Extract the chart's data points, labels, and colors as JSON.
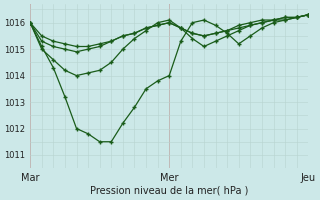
{
  "bg_color": "#cce8e8",
  "line_color": "#1a5c1a",
  "ylabel_ticks": [
    1011,
    1012,
    1013,
    1014,
    1015,
    1016
  ],
  "xlim": [
    0,
    48
  ],
  "ylim": [
    1010.6,
    1016.7
  ],
  "xlabel": "Pression niveau de la mer( hPa )",
  "xtick_positions": [
    0,
    24,
    48
  ],
  "xtick_labels": [
    "Mar",
    "Mer",
    "Jeu"
  ],
  "series": [
    {
      "x": [
        0,
        2,
        4,
        6,
        8,
        10,
        12,
        14,
        16,
        18,
        20,
        22,
        24,
        26,
        28,
        30,
        32,
        34,
        36,
        38,
        40,
        42,
        44,
        46,
        48
      ],
      "y": [
        1016.0,
        1015.1,
        1014.3,
        1013.2,
        1012.0,
        1011.8,
        1011.5,
        1011.5,
        1012.2,
        1012.8,
        1013.5,
        1013.8,
        1014.0,
        1015.3,
        1016.0,
        1016.1,
        1015.9,
        1015.6,
        1015.2,
        1015.5,
        1015.8,
        1016.0,
        1016.1,
        1016.2,
        1016.3
      ]
    },
    {
      "x": [
        0,
        2,
        4,
        6,
        8,
        10,
        12,
        14,
        16,
        18,
        20,
        22,
        24,
        26,
        28,
        30,
        32,
        34,
        36,
        38,
        40,
        42,
        44,
        46,
        48
      ],
      "y": [
        1016.0,
        1015.0,
        1014.6,
        1014.2,
        1014.0,
        1014.1,
        1014.2,
        1014.5,
        1015.0,
        1015.4,
        1015.7,
        1016.0,
        1016.1,
        1015.8,
        1015.4,
        1015.1,
        1015.3,
        1015.5,
        1015.7,
        1015.9,
        1016.0,
        1016.1,
        1016.2,
        1016.2,
        1016.3
      ]
    },
    {
      "x": [
        0,
        2,
        4,
        6,
        8,
        10,
        12,
        14,
        16,
        18,
        20,
        22,
        24,
        26,
        28,
        30,
        32,
        34,
        36,
        38,
        40,
        42,
        44,
        46,
        48
      ],
      "y": [
        1016.0,
        1015.3,
        1015.1,
        1015.0,
        1014.9,
        1015.0,
        1015.1,
        1015.3,
        1015.5,
        1015.6,
        1015.8,
        1015.9,
        1016.0,
        1015.8,
        1015.6,
        1015.5,
        1015.6,
        1015.7,
        1015.8,
        1015.9,
        1016.0,
        1016.1,
        1016.1,
        1016.2,
        1016.3
      ]
    },
    {
      "x": [
        0,
        2,
        4,
        6,
        8,
        10,
        12,
        14,
        16,
        18,
        20,
        22,
        24,
        26,
        28,
        30,
        32,
        34,
        36,
        38,
        40,
        42,
        44,
        46,
        48
      ],
      "y": [
        1016.0,
        1015.5,
        1015.3,
        1015.2,
        1015.1,
        1015.1,
        1015.2,
        1015.3,
        1015.5,
        1015.6,
        1015.8,
        1015.9,
        1016.0,
        1015.8,
        1015.6,
        1015.5,
        1015.6,
        1015.7,
        1015.9,
        1016.0,
        1016.1,
        1016.1,
        1016.2,
        1016.2,
        1016.3
      ]
    }
  ]
}
